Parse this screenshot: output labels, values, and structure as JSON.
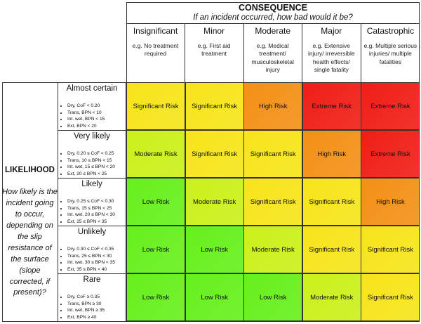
{
  "consequence": {
    "title": "CONSEQUENCE",
    "subtitle": "If an incident occurred, how bad would it be?",
    "columns": [
      {
        "name": "Insignificant",
        "desc": "e.g. No treatment required"
      },
      {
        "name": "Minor",
        "desc": "e.g. First aid treatment"
      },
      {
        "name": "Moderate",
        "desc": "e.g. Medical treatment/ musculoskeletal injury"
      },
      {
        "name": "Major",
        "desc": "e.g. Extensive injury/ irreversible health effects/ single fatality"
      },
      {
        "name": "Catastrophic",
        "desc": "e.g. Multiple serious injuries/ multiple fatalities"
      }
    ]
  },
  "likelihood": {
    "title": "LIKELIHOOD",
    "subtitle": "How likely is the incident going to occur, depending on the slip resistance of the surface (slope corrected, if present)?",
    "rows": [
      {
        "name": "Almost certain",
        "criteria": [
          "Dry, CoF < 0.20",
          "Trans, BPN < 10",
          "Int. wet, BPN < 15",
          "Ext, BPN < 20"
        ]
      },
      {
        "name": "Very likely",
        "criteria": [
          "Dry, 0.20 ≤ CoF < 0.25",
          "Trans, 10 ≤ BPN < 15",
          "Int. wet, 15 ≤ BPN < 20",
          "Ext, 20 ≤ BPN < 25"
        ]
      },
      {
        "name": "Likely",
        "criteria": [
          "Dry, 0.25 ≤ CoF < 0.30",
          "Trans, 15 ≤ BPN < 25",
          "Int. wet, 20 ≤ BPN < 30",
          "Ext, 25 ≤ BPN < 35"
        ]
      },
      {
        "name": "Unlikely",
        "criteria": [
          "Dry, 0.30 ≤ CoF < 0.35",
          "Trans, 25 ≤ BPN < 30",
          "Int. wet, 30 ≤ BPN < 35",
          "Ext, 35 ≤ BPN < 40"
        ]
      },
      {
        "name": "Rare",
        "criteria": [
          "Dry, CoF ≥ 0.35",
          "Trans, BPN ≥ 30",
          "Int. wet, BPN ≥ 35",
          "Ext, BPN ≥ 40"
        ]
      }
    ]
  },
  "matrix": [
    [
      "Significant Risk",
      "Significant Risk",
      "High Risk",
      "Extreme Risk",
      "Extreme Risk"
    ],
    [
      "Moderate Risk",
      "Significant Risk",
      "Significant Risk",
      "High Risk",
      "Extreme Risk"
    ],
    [
      "Low Risk",
      "Moderate Risk",
      "Significant Risk",
      "Significant Risk",
      "High Risk"
    ],
    [
      "Low Risk",
      "Low Risk",
      "Moderate Risk",
      "Significant Risk",
      "Significant Risk"
    ],
    [
      "Low Risk",
      "Low Risk",
      "Low Risk",
      "Moderate Risk",
      "Significant Risk"
    ]
  ],
  "colors": {
    "Low Risk": "#66f01c",
    "Moderate Risk": "#cbf01a",
    "Significant Risk": "#f7e41a",
    "High Risk": "#f39016",
    "Extreme Risk": "#f01e16"
  }
}
